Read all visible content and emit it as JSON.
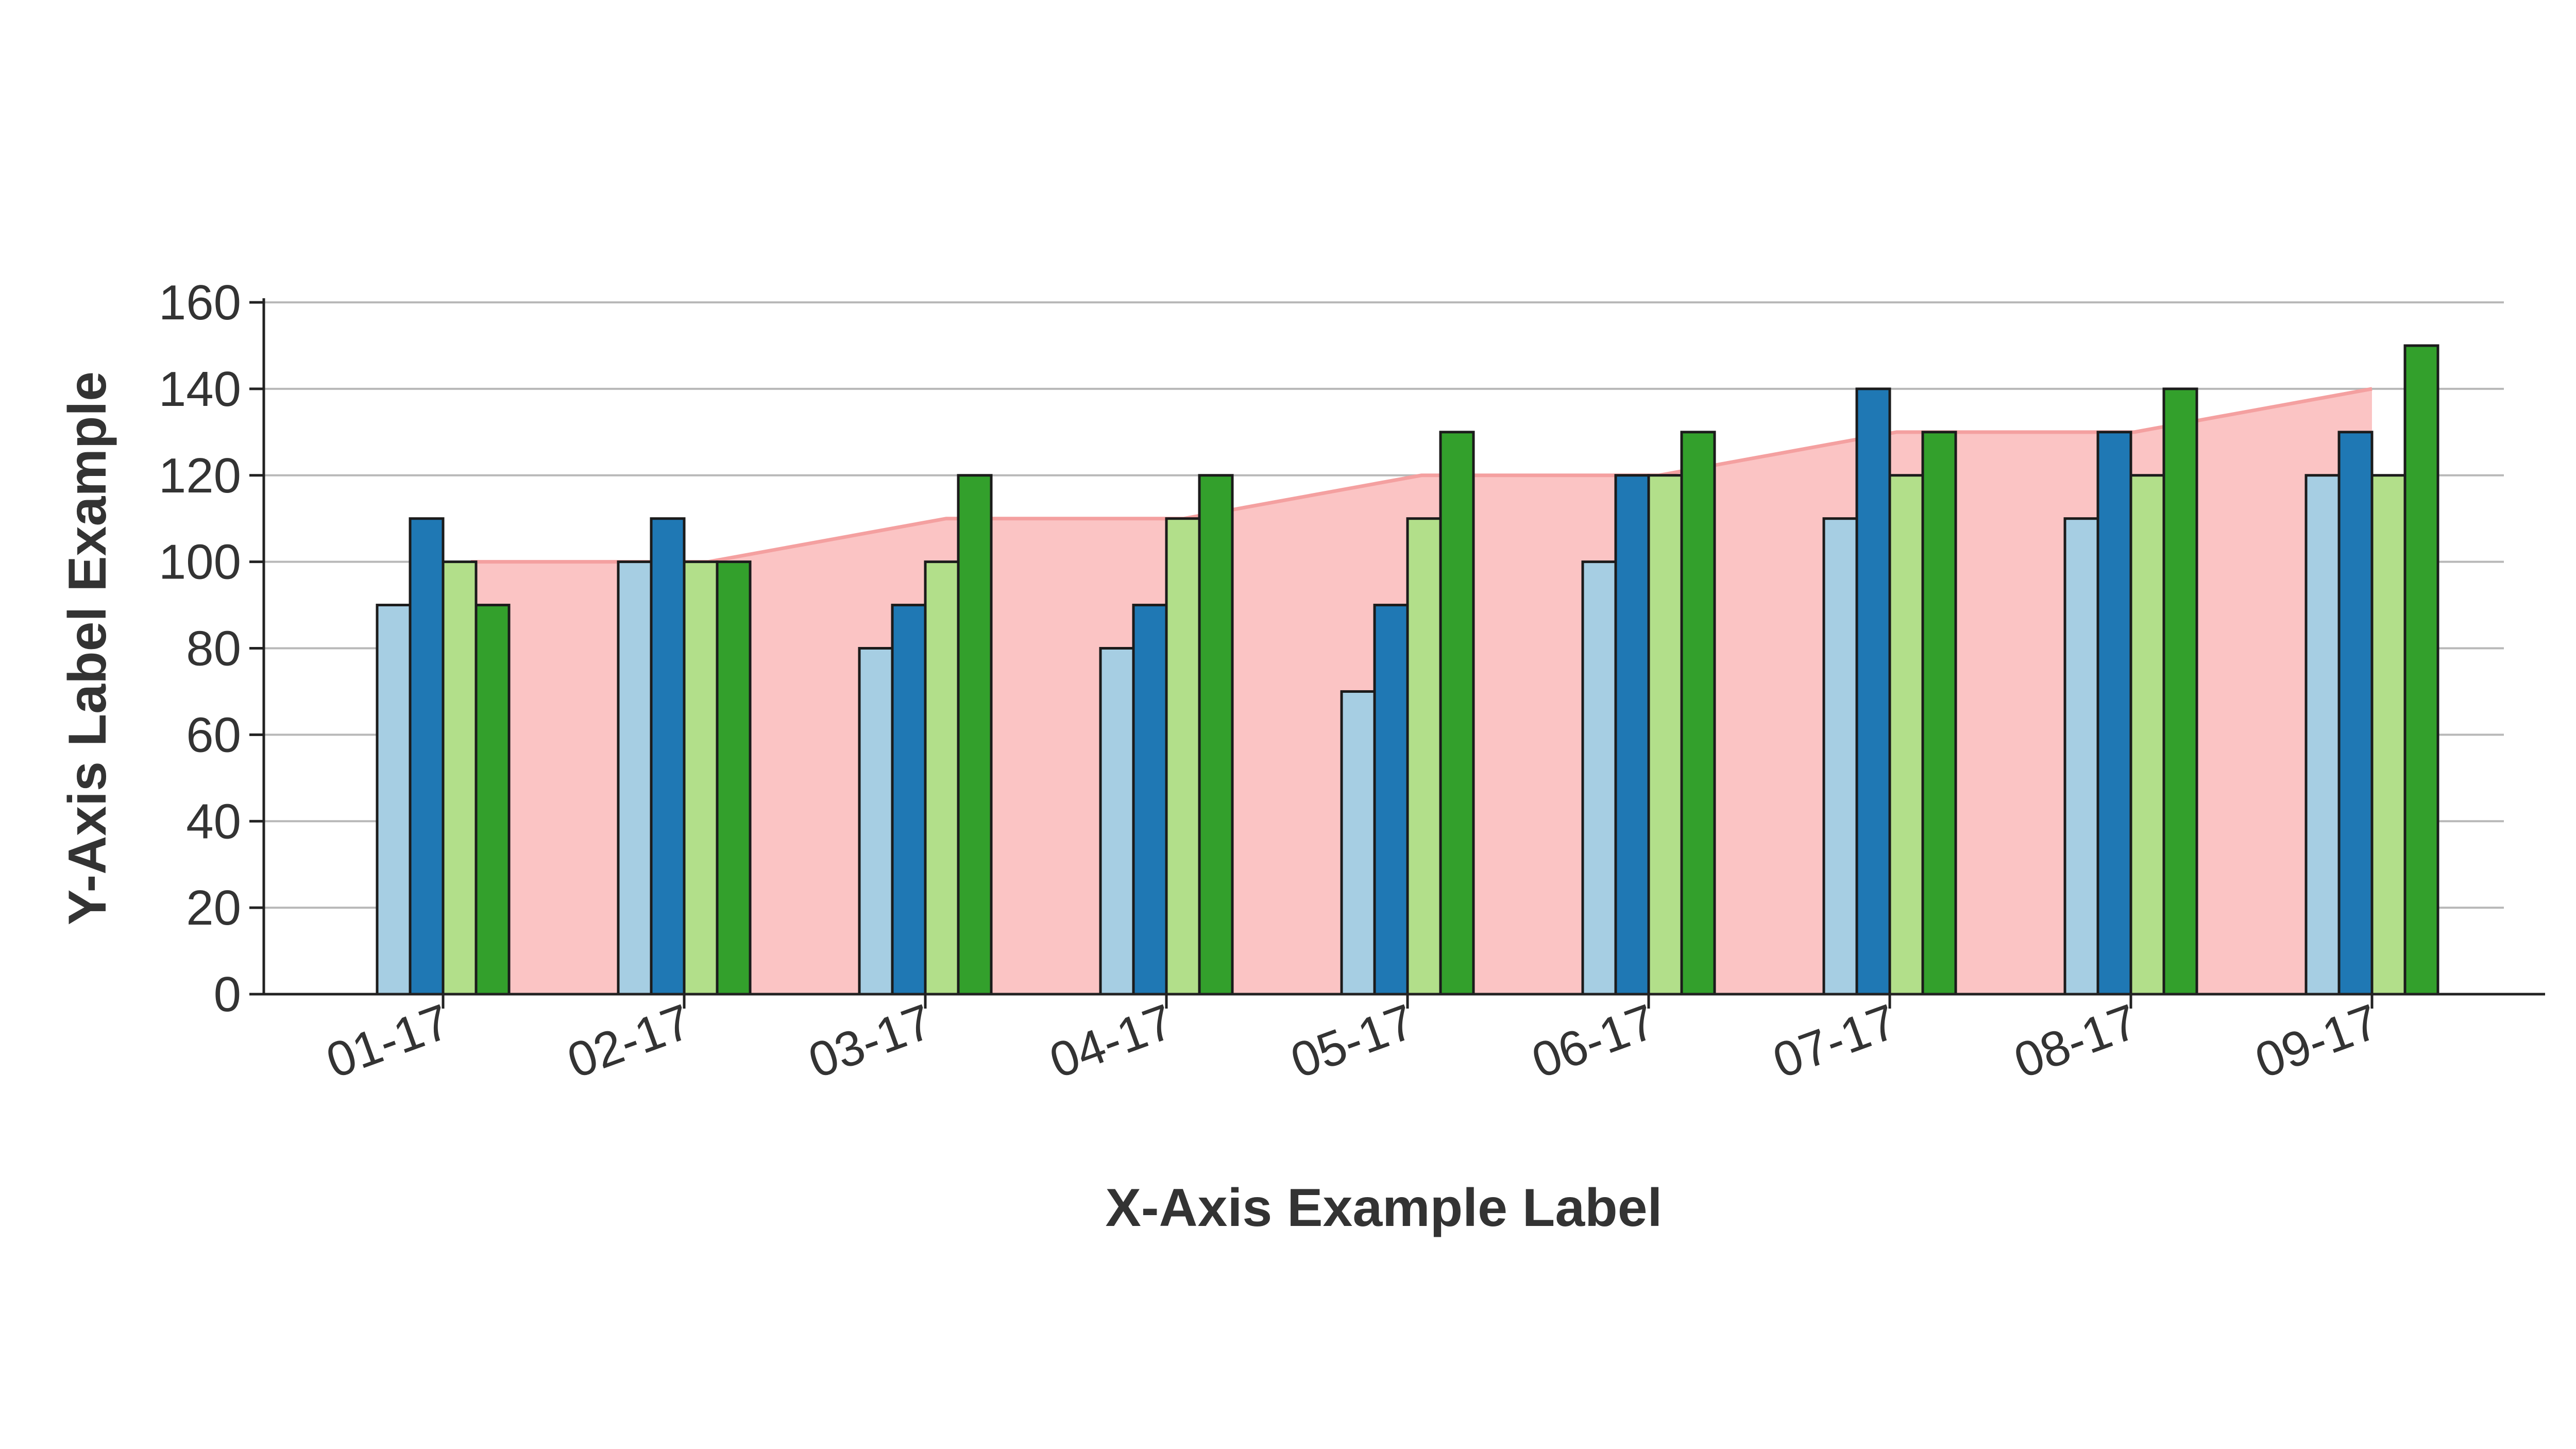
{
  "chart_data": {
    "type": "bar",
    "title": "",
    "xlabel": "X-Axis Example Label",
    "ylabel": "Y-Axis Label Example",
    "ylim": [
      0,
      160
    ],
    "yticks": [
      0,
      20,
      40,
      60,
      80,
      100,
      120,
      140,
      160
    ],
    "grid": "horizontal",
    "legend": "none",
    "categories": [
      "01-17",
      "02-17",
      "03-17",
      "04-17",
      "05-17",
      "06-17",
      "07-17",
      "08-17",
      "09-17"
    ],
    "series": [
      {
        "color": "#a6cee3",
        "values": [
          90,
          100,
          80,
          80,
          70,
          100,
          110,
          110,
          120
        ]
      },
      {
        "color": "#1f78b4",
        "values": [
          110,
          110,
          90,
          90,
          90,
          120,
          140,
          130,
          130
        ]
      },
      {
        "color": "#b2df8a",
        "values": [
          100,
          100,
          100,
          110,
          110,
          120,
          120,
          120,
          120
        ]
      },
      {
        "color": "#33a02c",
        "values": [
          90,
          100,
          120,
          120,
          130,
          130,
          130,
          140,
          150
        ]
      }
    ],
    "area": {
      "type": "area",
      "fill_color": "#fbc4c4",
      "line_color": "#f4a0a0",
      "values": [
        100,
        100,
        110,
        110,
        120,
        120,
        130,
        130,
        140
      ]
    }
  }
}
